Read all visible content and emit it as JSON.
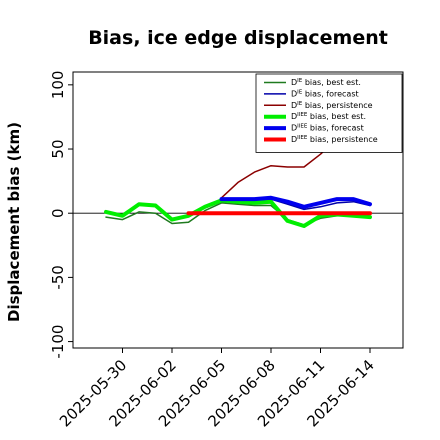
{
  "chart_data": {
    "type": "line",
    "title": "Bias, ice edge displacement",
    "ylabel": "Displacement bias (km)",
    "xlabel": "",
    "ylim": [
      -105,
      110
    ],
    "yticks": [
      100,
      50,
      0,
      -50,
      -100
    ],
    "xlim": [
      "2025-05-27",
      "2025-06-16"
    ],
    "xticks": [
      "2025-05-30",
      "2025-06-02",
      "2025-06-05",
      "2025-06-08",
      "2025-06-11",
      "2025-06-14"
    ],
    "highlight_xtick": "2025-06-05",
    "highlight_color": "#1f8a1f",
    "grid": false,
    "legend_position": "top-right",
    "zero_line": true,
    "series": [
      {
        "name": "D",
        "sup": "IE",
        "suffix": " bias, best est.",
        "color": "#1f7a1f",
        "width": 1.5,
        "x": [
          "2025-05-29",
          "2025-05-30",
          "2025-05-31",
          "2025-06-01",
          "2025-06-02",
          "2025-06-03",
          "2025-06-04",
          "2025-06-05",
          "2025-06-06",
          "2025-06-07",
          "2025-06-08",
          "2025-06-09",
          "2025-06-10",
          "2025-06-11",
          "2025-06-12",
          "2025-06-13",
          "2025-06-14"
        ],
        "values": [
          -3,
          -5,
          1,
          0,
          -8,
          -7,
          2,
          8,
          7,
          6,
          6,
          -5,
          -9,
          -4,
          -2,
          -1,
          -3
        ]
      },
      {
        "name": "D",
        "sup": "IE",
        "suffix": " bias, forecast",
        "color": "#0000aa",
        "width": 1.5,
        "x": [
          "2025-06-05",
          "2025-06-06",
          "2025-06-07",
          "2025-06-08",
          "2025-06-09",
          "2025-06-10",
          "2025-06-11",
          "2025-06-12",
          "2025-06-13",
          "2025-06-14"
        ],
        "values": [
          9,
          9,
          10,
          11,
          7,
          3,
          5,
          8,
          9,
          6
        ]
      },
      {
        "name": "D",
        "sup": "IE",
        "suffix": " bias, persistence",
        "color": "#8b0000",
        "width": 1.5,
        "x": [
          "2025-06-05",
          "2025-06-06",
          "2025-06-07",
          "2025-06-08",
          "2025-06-09",
          "2025-06-10",
          "2025-06-11",
          "2025-06-12"
        ],
        "values": [
          12,
          24,
          32,
          37,
          36,
          36,
          46,
          58
        ]
      },
      {
        "name": "D",
        "sup": "IIEE",
        "suffix": " bias, best est.",
        "color": "#00ee00",
        "width": 4,
        "x": [
          "2025-05-29",
          "2025-05-30",
          "2025-05-31",
          "2025-06-01",
          "2025-06-02",
          "2025-06-03",
          "2025-06-04",
          "2025-06-05",
          "2025-06-06",
          "2025-06-07",
          "2025-06-08",
          "2025-06-09",
          "2025-06-10",
          "2025-06-11",
          "2025-06-12",
          "2025-06-13",
          "2025-06-14"
        ],
        "values": [
          1,
          -2,
          7,
          6,
          -5,
          -2,
          5,
          10,
          9,
          8,
          9,
          -6,
          -10,
          -2,
          -1,
          -2,
          -3
        ]
      },
      {
        "name": "D",
        "sup": "IIEE",
        "suffix": " bias, forecast",
        "color": "#0000ee",
        "width": 4,
        "x": [
          "2025-06-05",
          "2025-06-06",
          "2025-06-07",
          "2025-06-08",
          "2025-06-09",
          "2025-06-10",
          "2025-06-11",
          "2025-06-12",
          "2025-06-13",
          "2025-06-14"
        ],
        "values": [
          11,
          11,
          11,
          12,
          9,
          5,
          8,
          11,
          11,
          7
        ]
      },
      {
        "name": "D",
        "sup": "IIEE",
        "suffix": " bias, persistence",
        "color": "#ff0000",
        "width": 4,
        "x": [
          "2025-06-03",
          "2025-06-04",
          "2025-06-05",
          "2025-06-06",
          "2025-06-07",
          "2025-06-08",
          "2025-06-09",
          "2025-06-10",
          "2025-06-11",
          "2025-06-12",
          "2025-06-13",
          "2025-06-14"
        ],
        "values": [
          0,
          0,
          0,
          0,
          0,
          0,
          0,
          0,
          0,
          0,
          0,
          0
        ]
      }
    ]
  }
}
